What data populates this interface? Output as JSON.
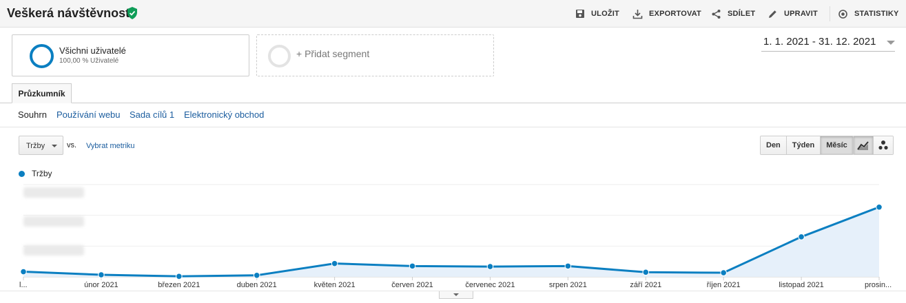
{
  "header": {
    "title": "Veškerá návštěvnost",
    "verified_icon": "shield-check-icon",
    "actions": [
      {
        "label": "ULOŽIT",
        "icon": "save-icon"
      },
      {
        "label": "EXPORTOVAT",
        "icon": "export-icon"
      },
      {
        "label": "SDÍLET",
        "icon": "share-icon"
      },
      {
        "label": "UPRAVIT",
        "icon": "pencil-icon"
      },
      {
        "label": "STATISTIKY",
        "icon": "insights-icon"
      }
    ]
  },
  "segments": {
    "active": {
      "name": "Všichni uživatelé",
      "sub": "100,00 % Uživatelé"
    },
    "add_label": "+ Přidat segment"
  },
  "date_range": "1. 1. 2021 - 31. 12. 2021",
  "tabs": {
    "main": "Průzkumník",
    "sub": [
      "Souhrn",
      "Používání webu",
      "Sada cílů 1",
      "Elektronický obchod"
    ],
    "active_sub": "Souhrn"
  },
  "metric": {
    "selected": "Tržby",
    "vs_label": "vs.",
    "select_label": "Vybrat metriku"
  },
  "period_buttons": [
    "Den",
    "Týden",
    "Měsíc"
  ],
  "active_period": "Měsíc",
  "colors": {
    "accent": "#0b7fc1",
    "area": "#e6f0fa",
    "link": "#1a5c9e"
  },
  "chart_data": {
    "type": "area",
    "legend": [
      "Tržby"
    ],
    "categories": [
      "l...",
      "únor 2021",
      "březen 2021",
      "duben 2021",
      "květen 2021",
      "červen 2021",
      "červenec 2021",
      "srpen 2021",
      "září 2021",
      "říjen 2021",
      "listopad 2021",
      "prosin..."
    ],
    "series": [
      {
        "name": "Tržby",
        "values": [
          0.5,
          0.2,
          0.05,
          0.15,
          1.3,
          1.05,
          1.0,
          1.05,
          0.45,
          0.4,
          3.9,
          6.8
        ]
      }
    ],
    "ylim": [
      0,
      9
    ],
    "grid": true,
    "y_tick_labels_blurred": true
  }
}
